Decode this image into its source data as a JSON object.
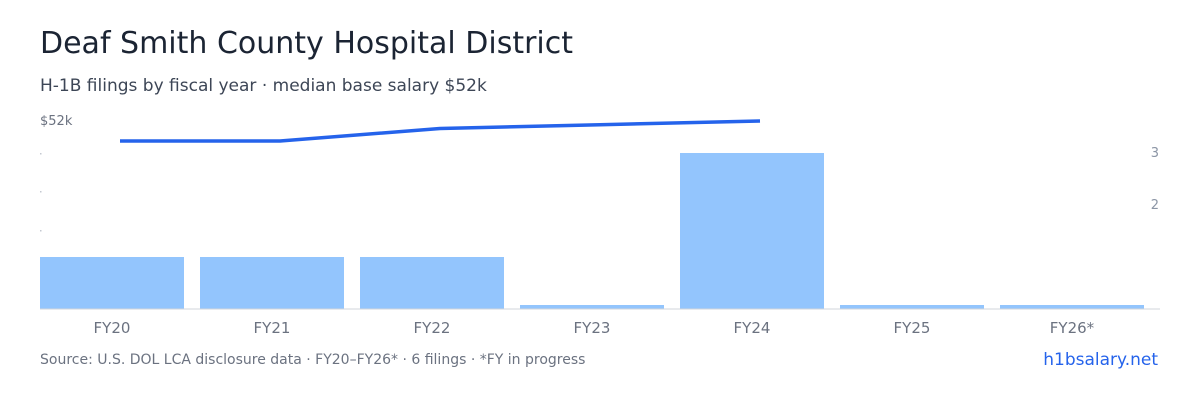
{
  "header": {
    "title": "Deaf Smith County Hospital District",
    "subtitle": "H-1B filings by fiscal year · median base salary $52k"
  },
  "footer": {
    "source": "Source: U.S. DOL LCA disclosure data · FY20–FY26* · 6 filings · *FY in progress",
    "brand": "h1bsalary.net"
  },
  "colors": {
    "bar": "#93c5fd",
    "line": "#2563eb",
    "axis_text": "#6b7280",
    "right_axis_text": "#8b95a5",
    "baseline": "#d1d5db"
  },
  "chart_data": {
    "type": "bar",
    "categories": [
      "FY20",
      "FY21",
      "FY22",
      "FY23",
      "FY24",
      "FY25",
      "FY26*"
    ],
    "series": [
      {
        "type": "bar",
        "axis": "right",
        "values": [
          1,
          1,
          1,
          0,
          3,
          0,
          0
        ]
      },
      {
        "type": "line",
        "axis": "left",
        "values": [
          51.2,
          51.2,
          51.7,
          51.85,
          52.0,
          null,
          null
        ]
      }
    ],
    "left_axis": {
      "tick_labels": [
        "$52k"
      ]
    },
    "right_axis": {
      "tick_labels": [
        "3",
        "2"
      ]
    }
  }
}
